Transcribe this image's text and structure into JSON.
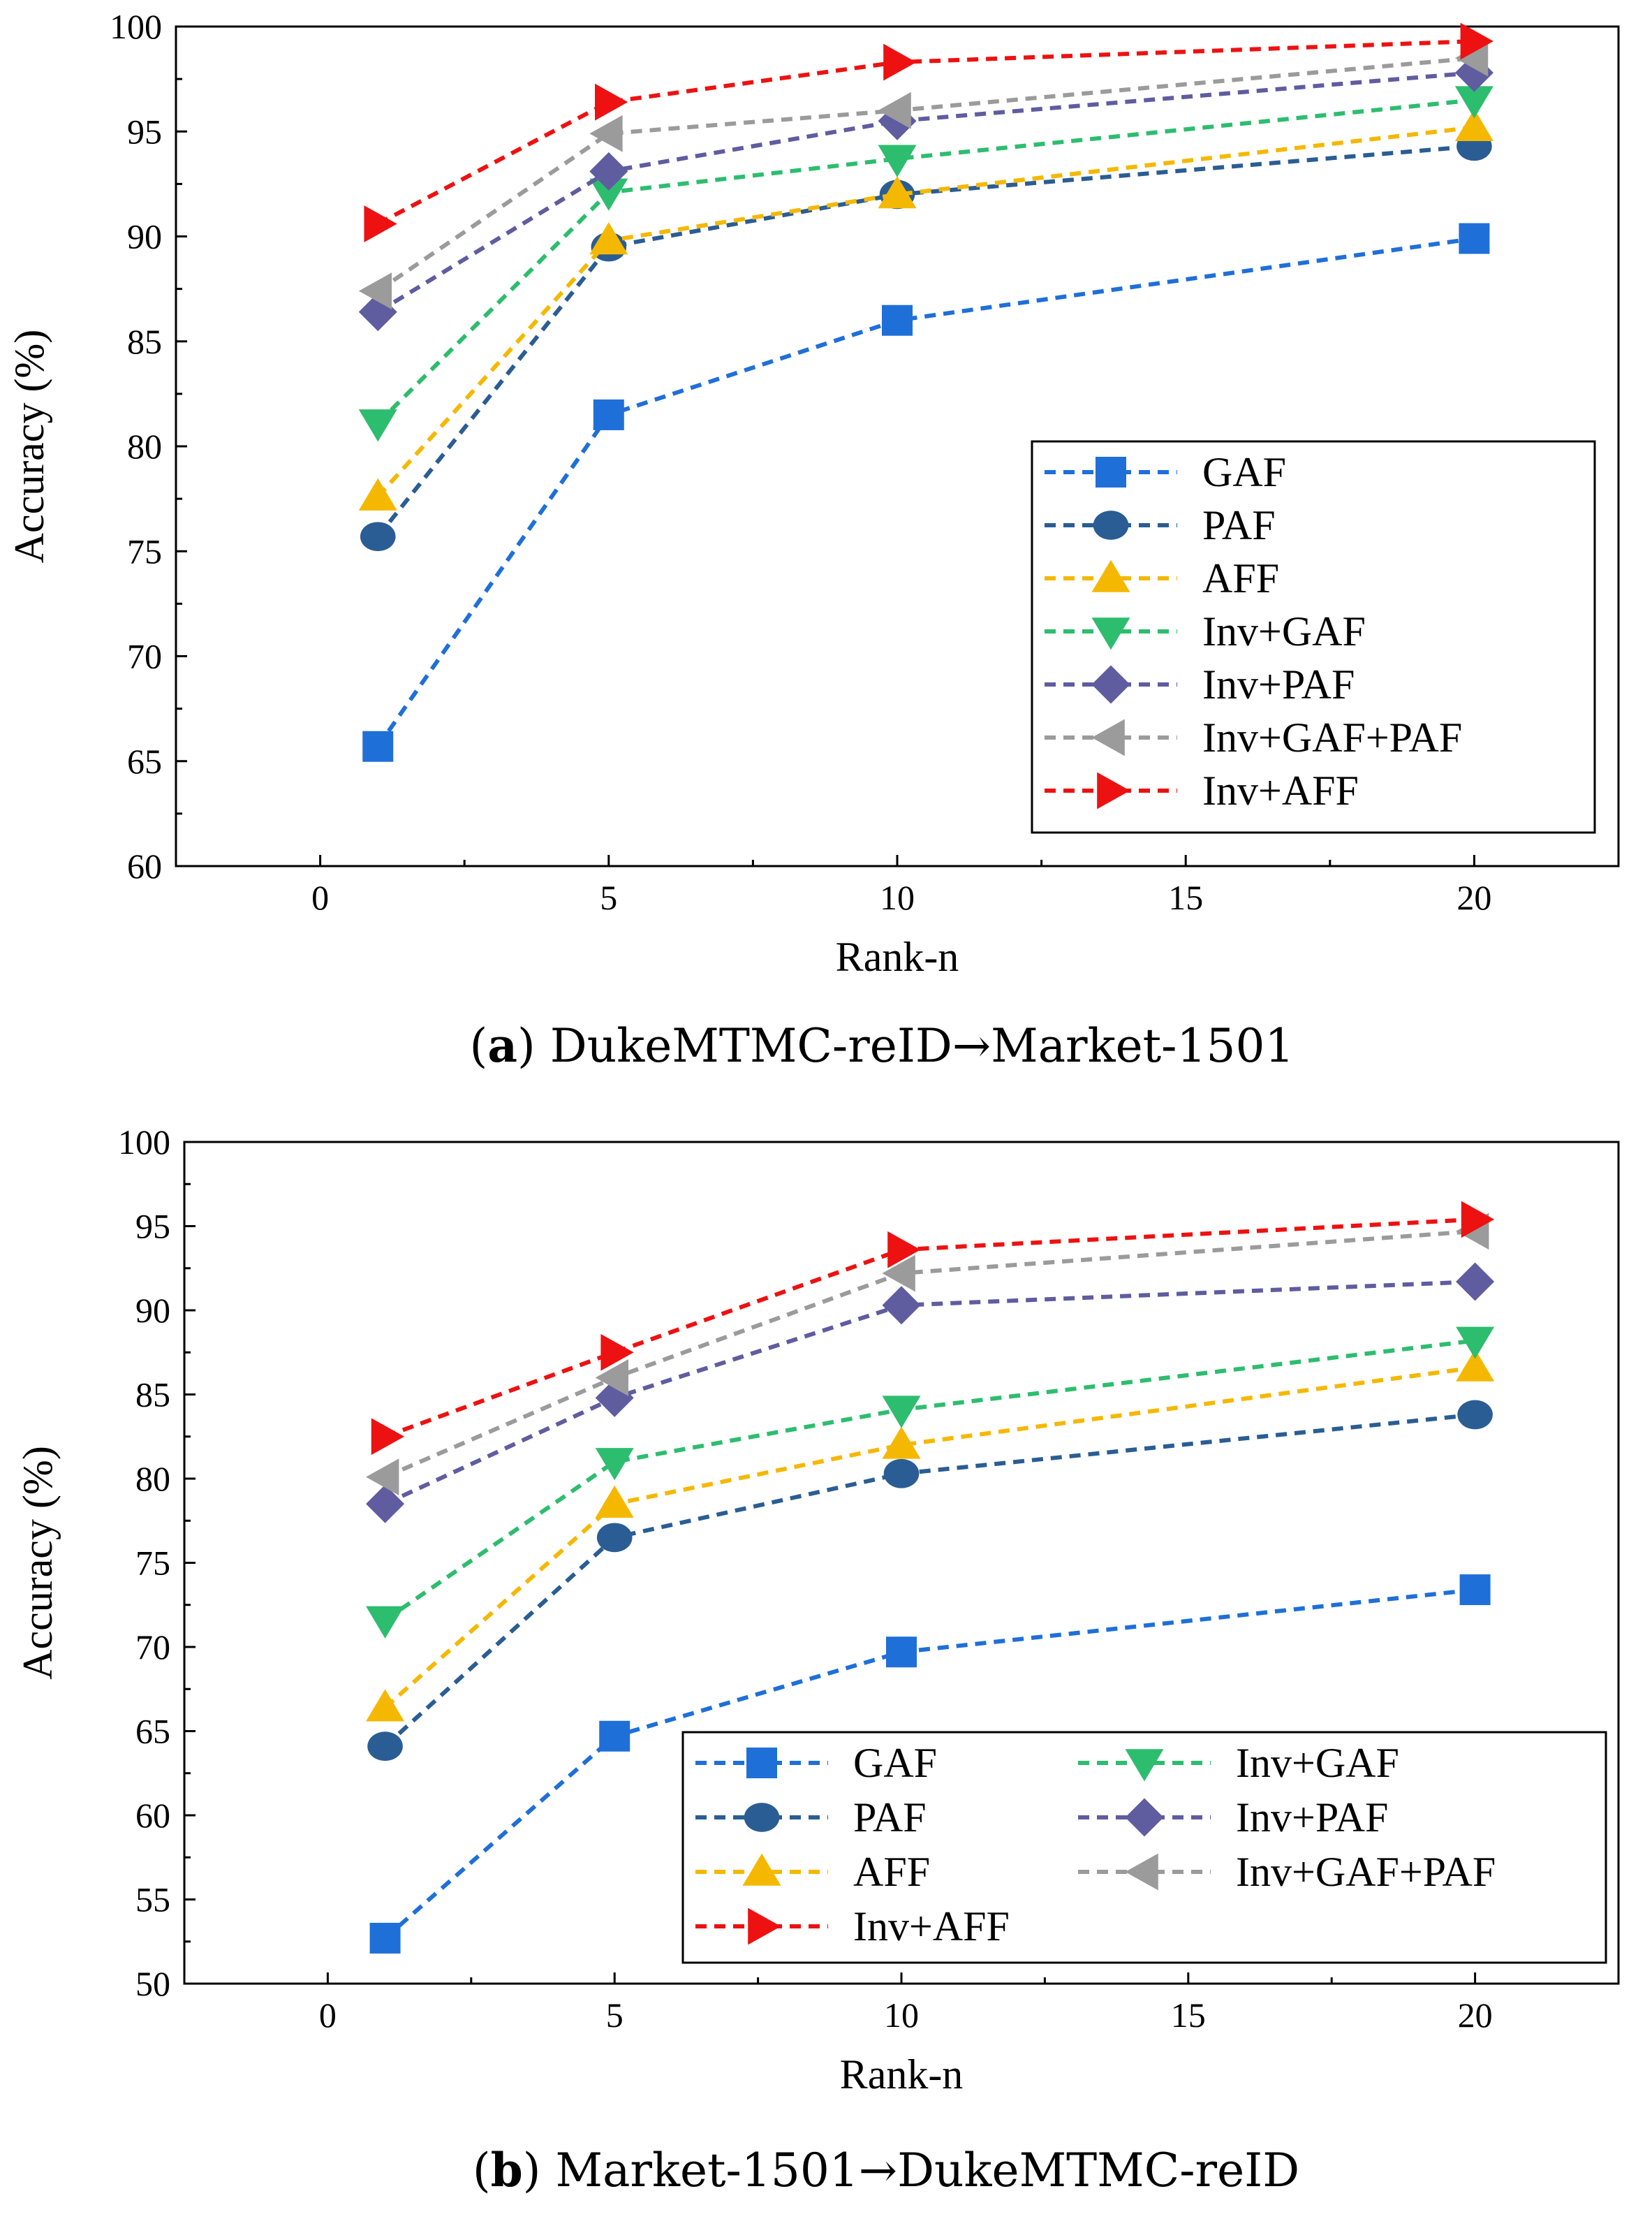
{
  "chart_data": [
    {
      "type": "line",
      "caption_letter": "a",
      "caption_text": "DukeMTMC-reID→Market-1501",
      "xlabel": "Rank-n",
      "ylabel": "Accuracy (%)",
      "xlim": [
        -2.5,
        22.5
      ],
      "ylim": [
        60,
        100
      ],
      "xticks": [
        0,
        5,
        10,
        15,
        20
      ],
      "yticks": [
        60,
        65,
        70,
        75,
        80,
        85,
        90,
        95,
        100
      ],
      "legend_position": "lower-right",
      "legend_columns": 1,
      "x": [
        1,
        5,
        10,
        20
      ],
      "series": [
        {
          "name": "GAF",
          "marker": "square",
          "color": "#1f6fd9",
          "values": [
            65.7,
            81.5,
            86.0,
            89.9
          ]
        },
        {
          "name": "PAF",
          "marker": "circle",
          "color": "#2a5d93",
          "values": [
            75.7,
            89.5,
            92.0,
            94.3
          ]
        },
        {
          "name": "AFF",
          "marker": "triangle-up",
          "color": "#f5b800",
          "values": [
            77.6,
            89.8,
            92.0,
            95.2
          ]
        },
        {
          "name": "Inv+GAF",
          "marker": "triangle-down",
          "color": "#2dbd6e",
          "values": [
            81.1,
            92.1,
            93.7,
            96.5
          ]
        },
        {
          "name": "Inv+PAF",
          "marker": "diamond",
          "color": "#5f5ca0",
          "values": [
            86.4,
            93.1,
            95.5,
            97.8
          ]
        },
        {
          "name": "Inv+GAF+PAF",
          "marker": "triangle-left",
          "color": "#9b9b9b",
          "values": [
            87.4,
            94.9,
            96.0,
            98.5
          ]
        },
        {
          "name": "Inv+AFF",
          "marker": "triangle-right",
          "color": "#ee1111",
          "values": [
            90.6,
            96.4,
            98.3,
            99.3
          ]
        }
      ]
    },
    {
      "type": "line",
      "caption_letter": "b",
      "caption_text": "Market-1501→DukeMTMC-reID",
      "xlabel": "Rank-n",
      "ylabel": "Accuracy (%)",
      "xlim": [
        -2.5,
        22.5
      ],
      "ylim": [
        50,
        100
      ],
      "xticks": [
        0,
        5,
        10,
        15,
        20
      ],
      "yticks": [
        50,
        55,
        60,
        65,
        70,
        75,
        80,
        85,
        90,
        95,
        100
      ],
      "legend_position": "lower-right",
      "legend_columns": 2,
      "x": [
        1,
        5,
        10,
        20
      ],
      "series": [
        {
          "name": "GAF",
          "marker": "square",
          "color": "#1f6fd9",
          "values": [
            52.7,
            64.7,
            69.7,
            73.4
          ]
        },
        {
          "name": "PAF",
          "marker": "circle",
          "color": "#2a5d93",
          "values": [
            64.1,
            76.5,
            80.3,
            83.8
          ]
        },
        {
          "name": "AFF",
          "marker": "triangle-up",
          "color": "#f5b800",
          "values": [
            66.4,
            78.5,
            82.0,
            86.6
          ]
        },
        {
          "name": "Inv+GAF",
          "marker": "triangle-down",
          "color": "#2dbd6e",
          "values": [
            71.6,
            81.0,
            84.1,
            88.2
          ]
        },
        {
          "name": "Inv+PAF",
          "marker": "diamond",
          "color": "#5f5ca0",
          "values": [
            78.5,
            84.8,
            90.3,
            91.7
          ]
        },
        {
          "name": "Inv+GAF+PAF",
          "marker": "triangle-left",
          "color": "#9b9b9b",
          "values": [
            80.1,
            86.0,
            92.2,
            94.7
          ]
        },
        {
          "name": "Inv+AFF",
          "marker": "triangle-right",
          "color": "#ee1111",
          "values": [
            82.5,
            87.5,
            93.6,
            95.4
          ]
        }
      ]
    }
  ]
}
